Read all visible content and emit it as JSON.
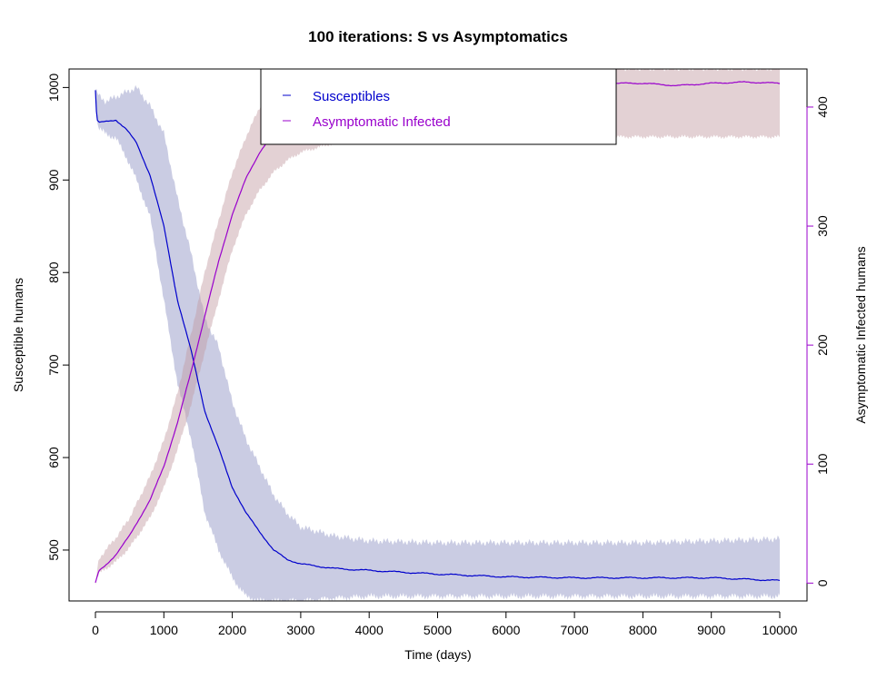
{
  "chart_data": {
    "type": "line",
    "title": "100  iterations: S vs Asymptomatics",
    "xlabel": "Time (days)",
    "ylabel_left": "Susceptible humans",
    "ylabel_right": "Asymptomatic Infected humans",
    "xlim": [
      0,
      10000
    ],
    "ylim_left": [
      445,
      1020
    ],
    "ylim_right": [
      -15,
      432
    ],
    "x_ticks": [
      0,
      1000,
      2000,
      3000,
      4000,
      5000,
      6000,
      7000,
      8000,
      9000,
      10000
    ],
    "y_left_ticks": [
      500,
      600,
      700,
      800,
      900,
      1000
    ],
    "y_right_ticks": [
      0,
      100,
      200,
      300,
      400
    ],
    "legend_position": "top-center",
    "series": [
      {
        "name": "Susceptibles",
        "axis": "left",
        "color": "#0000cc",
        "band_color": "#8a8fc0",
        "x": [
          0,
          20,
          60,
          150,
          300,
          450,
          600,
          800,
          1000,
          1200,
          1400,
          1600,
          1800,
          2000,
          2200,
          2400,
          2600,
          2800,
          3000,
          3500,
          4000,
          5000,
          6000,
          7000,
          8000,
          9000,
          10000
        ],
        "mean": [
          997,
          965,
          962,
          963,
          965,
          955,
          940,
          905,
          850,
          770,
          715,
          650,
          610,
          568,
          540,
          520,
          500,
          490,
          485,
          480,
          478,
          474,
          471,
          470,
          470,
          470,
          467
        ],
        "lower": [
          997,
          962,
          955,
          950,
          945,
          925,
          900,
          860,
          770,
          680,
          620,
          540,
          500,
          470,
          450,
          445,
          445,
          445,
          445,
          448,
          450,
          450,
          450,
          450,
          450,
          450,
          450
        ],
        "upper": [
          997,
          995,
          990,
          985,
          990,
          995,
          1000,
          980,
          950,
          880,
          820,
          750,
          720,
          660,
          620,
          590,
          560,
          540,
          525,
          515,
          510,
          508,
          508,
          508,
          508,
          510,
          512
        ]
      },
      {
        "name": "Asymptomatic Infected",
        "axis": "right",
        "color": "#9900cc",
        "band_color": "#c09aa0",
        "x": [
          0,
          50,
          150,
          300,
          500,
          800,
          1000,
          1200,
          1400,
          1600,
          1800,
          2000,
          2200,
          2400,
          2600,
          2800,
          3000,
          3500,
          4000,
          5000,
          6000,
          7000,
          7700,
          8000,
          8500,
          9000,
          9500,
          10000
        ],
        "mean": [
          0,
          10,
          15,
          24,
          40,
          70,
          98,
          135,
          178,
          225,
          270,
          310,
          340,
          362,
          378,
          390,
          398,
          408,
          412,
          416,
          418,
          419,
          420,
          420,
          418,
          420,
          421,
          420
        ],
        "lower": [
          0,
          8,
          12,
          18,
          30,
          55,
          80,
          112,
          150,
          195,
          238,
          280,
          310,
          330,
          345,
          355,
          362,
          370,
          373,
          375,
          375,
          375,
          375,
          375,
          375,
          375,
          375,
          375
        ],
        "upper": [
          0,
          20,
          28,
          38,
          55,
          90,
          120,
          160,
          210,
          262,
          305,
          345,
          375,
          400,
          415,
          425,
          432,
          432,
          432,
          432,
          432,
          432,
          432,
          432,
          432,
          432,
          432,
          432
        ]
      }
    ]
  }
}
